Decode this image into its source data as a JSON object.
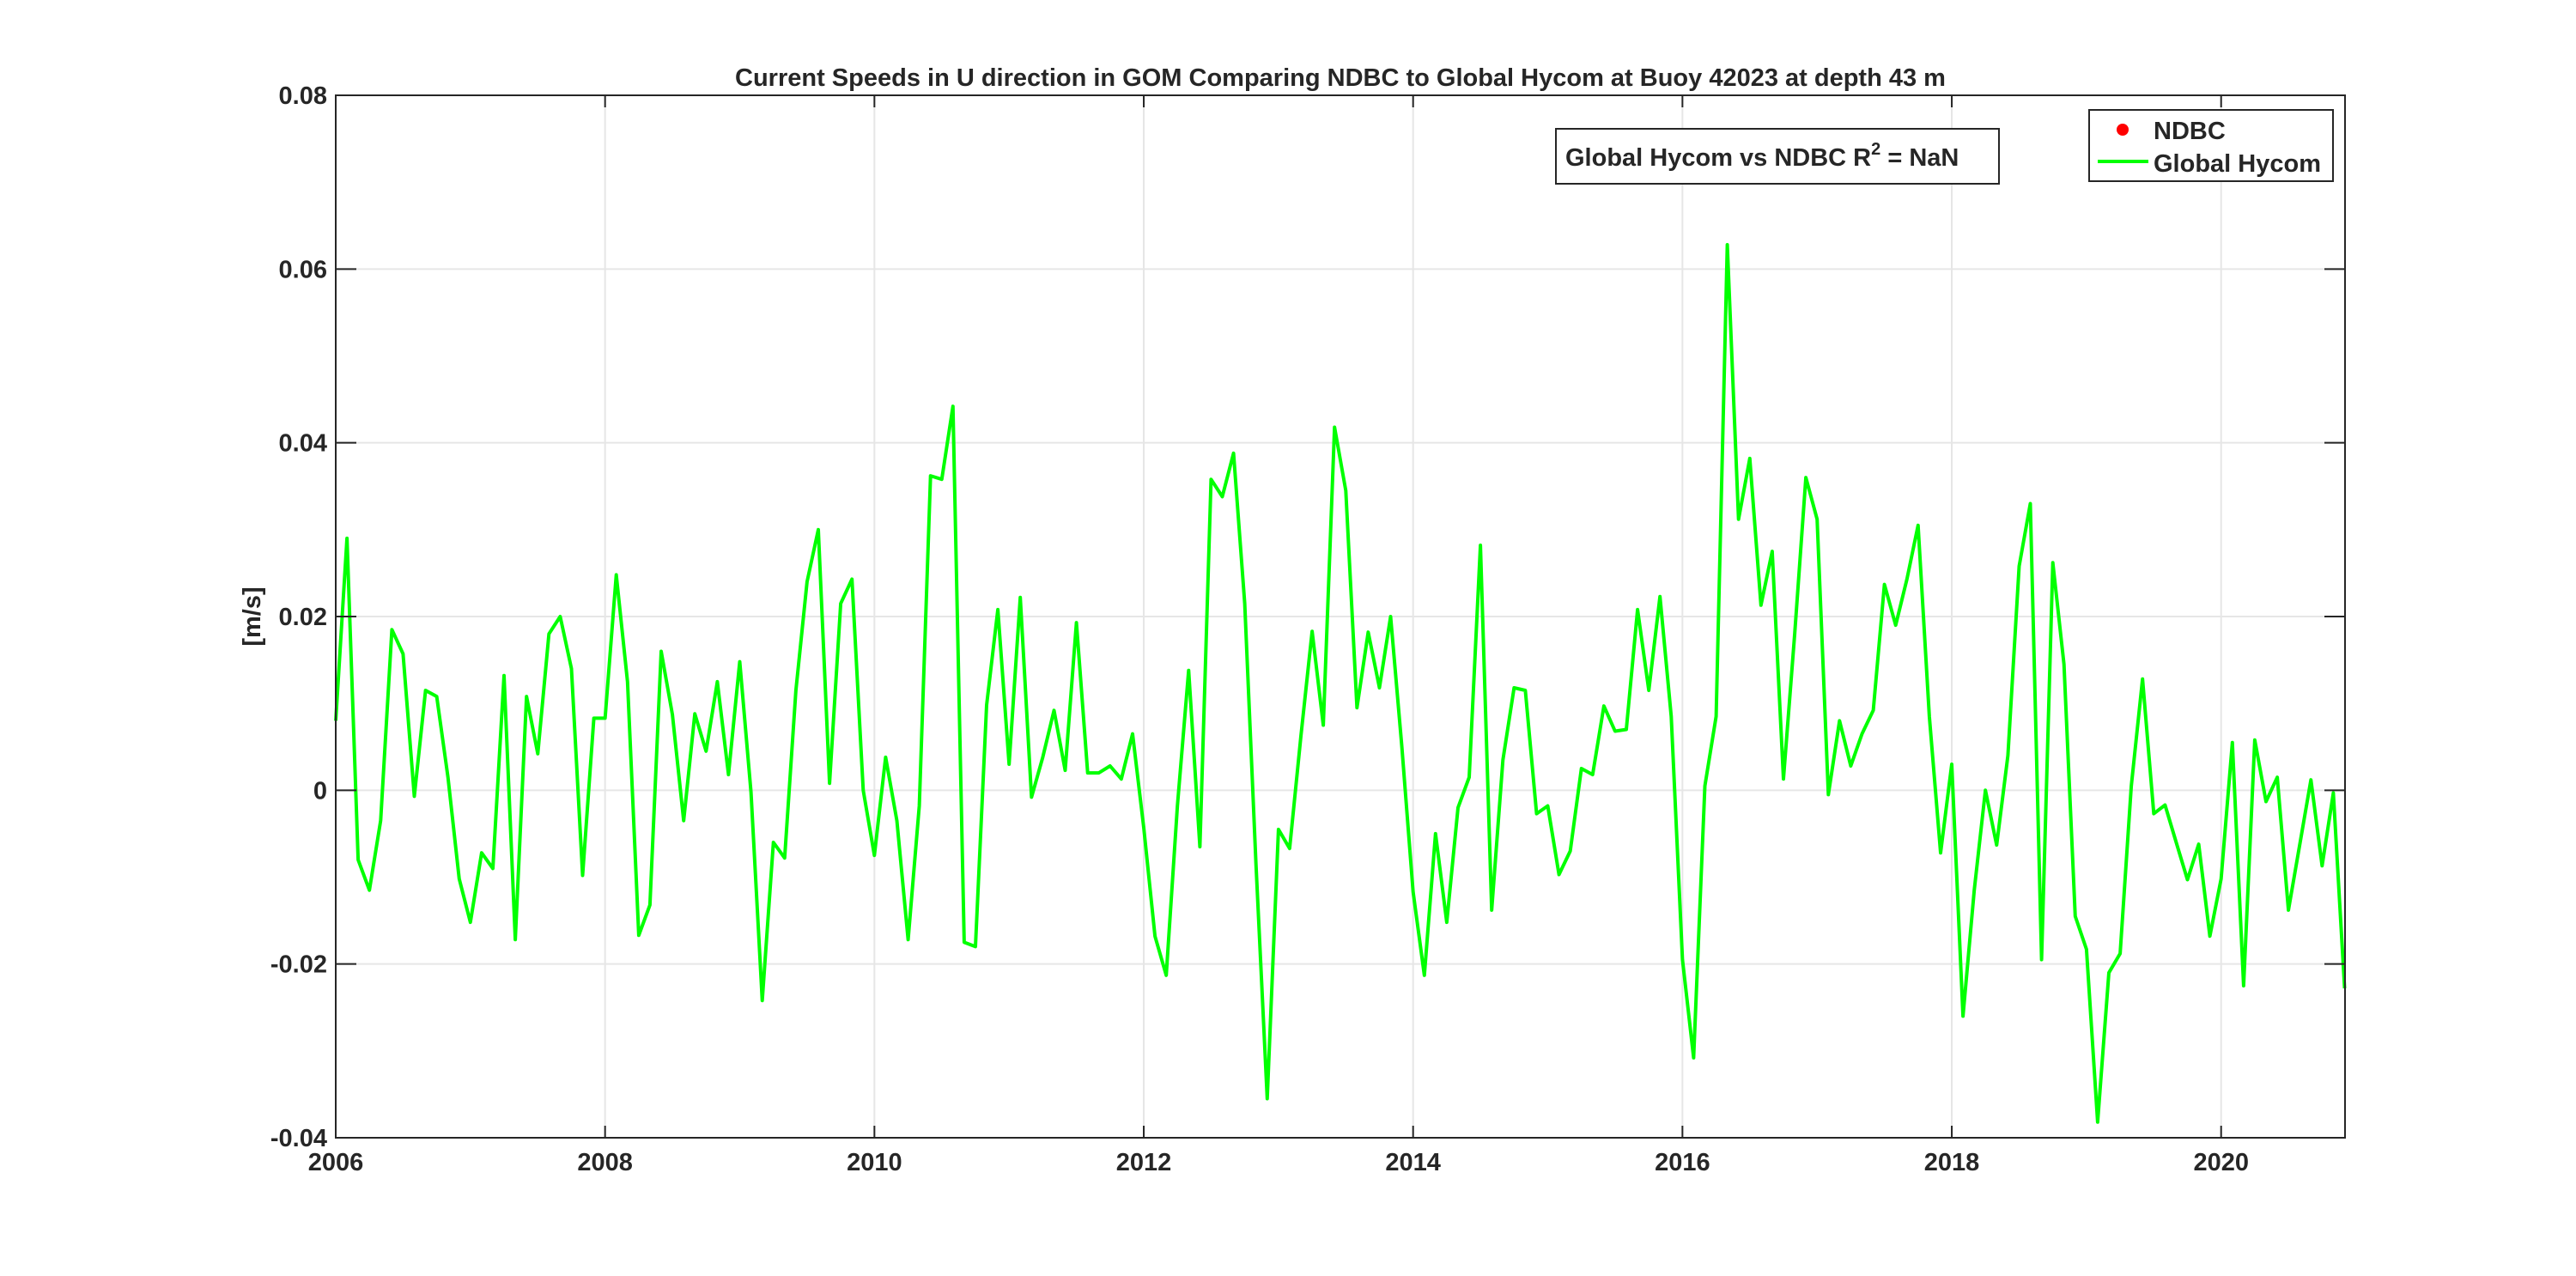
{
  "chart_data": {
    "type": "line",
    "title": "Current Speeds in U direction in GOM Comparing NDBC to Global Hycom at Buoy  42023  at depth  43 m",
    "xlabel": "",
    "ylabel": "[m/s]",
    "xlim": [
      2006,
      2020.92
    ],
    "ylim": [
      -0.04,
      0.08
    ],
    "x_ticks": [
      "2006",
      "2008",
      "2010",
      "2012",
      "2014",
      "2016",
      "2018",
      "2020"
    ],
    "y_ticks": [
      "-0.04",
      "-0.02",
      "0",
      "0.02",
      "0.04",
      "0.06",
      "0.08"
    ],
    "grid": true,
    "legend_position": "top-right",
    "annotation": {
      "prefix": "Global Hycom vs NDBC R",
      "sup": "2",
      "suffix": " = NaN"
    },
    "legend": [
      {
        "name": "NDBC",
        "marker": "dot",
        "color": "#ff0000"
      },
      {
        "name": "Global Hycom",
        "marker": "line",
        "color": "#00ff00"
      }
    ],
    "series": [
      {
        "name": "NDBC",
        "color": "#ff0000",
        "x": [],
        "y": []
      },
      {
        "name": "Global Hycom",
        "color": "#00ff00",
        "x": [
          2006.0,
          2006.0833,
          2006.1667,
          2006.25,
          2006.3333,
          2006.4167,
          2006.5,
          2006.5833,
          2006.6667,
          2006.75,
          2006.8333,
          2006.9167,
          2007.0,
          2007.0833,
          2007.1667,
          2007.25,
          2007.3333,
          2007.4167,
          2007.5,
          2007.5833,
          2007.6667,
          2007.75,
          2007.8333,
          2007.9167,
          2008.0,
          2008.0833,
          2008.1667,
          2008.25,
          2008.3333,
          2008.4167,
          2008.5,
          2008.5833,
          2008.6667,
          2008.75,
          2008.8333,
          2008.9167,
          2009.0,
          2009.0833,
          2009.1667,
          2009.25,
          2009.3333,
          2009.4167,
          2009.5,
          2009.5833,
          2009.6667,
          2009.75,
          2009.8333,
          2009.9167,
          2010.0,
          2010.0833,
          2010.1667,
          2010.25,
          2010.3333,
          2010.4167,
          2010.5,
          2010.5833,
          2010.6667,
          2010.75,
          2010.8333,
          2010.9167,
          2011.0,
          2011.0833,
          2011.1667,
          2011.25,
          2011.3333,
          2011.4167,
          2011.5,
          2011.5833,
          2011.6667,
          2011.75,
          2011.8333,
          2011.9167,
          2012.0,
          2012.0833,
          2012.1667,
          2012.25,
          2012.3333,
          2012.4167,
          2012.5,
          2012.5833,
          2012.6667,
          2012.75,
          2012.8333,
          2012.9167,
          2013.0,
          2013.0833,
          2013.1667,
          2013.25,
          2013.3333,
          2013.4167,
          2013.5,
          2013.5833,
          2013.6667,
          2013.75,
          2013.8333,
          2013.9167,
          2014.0,
          2014.0833,
          2014.1667,
          2014.25,
          2014.3333,
          2014.4167,
          2014.5,
          2014.5833,
          2014.6667,
          2014.75,
          2014.8333,
          2014.9167,
          2015.0,
          2015.0833,
          2015.1667,
          2015.25,
          2015.3333,
          2015.4167,
          2015.5,
          2015.5833,
          2015.6667,
          2015.75,
          2015.8333,
          2015.9167,
          2016.0,
          2016.0833,
          2016.1667,
          2016.25,
          2016.3333,
          2016.4167,
          2016.5,
          2016.5833,
          2016.6667,
          2016.75,
          2016.8333,
          2016.9167,
          2017.0,
          2017.0833,
          2017.1667,
          2017.25,
          2017.3333,
          2017.4167,
          2017.5,
          2017.5833,
          2017.6667,
          2017.75,
          2017.8333,
          2017.9167,
          2018.0,
          2018.0833,
          2018.1667,
          2018.25,
          2018.3333,
          2018.4167,
          2018.5,
          2018.5833,
          2018.6667,
          2018.75,
          2018.8333,
          2018.9167,
          2019.0,
          2019.0833,
          2019.1667,
          2019.25,
          2019.3333,
          2019.4167,
          2019.5,
          2019.5833,
          2019.6667,
          2019.75,
          2019.8333,
          2019.9167,
          2020.0,
          2020.0833,
          2020.1667,
          2020.25,
          2020.3333,
          2020.4167,
          2020.5,
          2020.5833,
          2020.6667,
          2020.75,
          2020.8333,
          2020.9167
        ],
        "y": [
          0.008,
          0.029,
          -0.008,
          -0.0115,
          -0.0035,
          0.0185,
          0.0157,
          -0.0007,
          0.0115,
          0.0108,
          0.0015,
          -0.0102,
          -0.0152,
          -0.0072,
          -0.009,
          0.0132,
          -0.0172,
          0.0108,
          0.0042,
          0.018,
          0.02,
          0.014,
          -0.0098,
          0.0083,
          0.0083,
          0.0248,
          0.0125,
          -0.0167,
          -0.0132,
          0.016,
          0.0087,
          -0.0035,
          0.0088,
          0.0045,
          0.0125,
          0.0018,
          0.0148,
          -0.0002,
          -0.0242,
          -0.006,
          -0.0078,
          0.0115,
          0.024,
          0.03,
          0.0008,
          0.0215,
          0.0243,
          0.0,
          -0.0075,
          0.0038,
          -0.0035,
          -0.0172,
          -0.0018,
          0.0362,
          0.0358,
          0.0442,
          -0.0175,
          -0.018,
          0.0098,
          0.0208,
          0.003,
          0.0222,
          -0.0008,
          0.0038,
          0.0092,
          0.0023,
          0.0193,
          0.002,
          0.002,
          0.0028,
          0.0013,
          0.0065,
          -0.0043,
          -0.0168,
          -0.0213,
          -0.0018,
          0.0138,
          -0.0065,
          0.0358,
          0.0338,
          0.0388,
          0.0215,
          -0.0085,
          -0.0355,
          -0.0045,
          -0.0067,
          0.0062,
          0.0183,
          0.0075,
          0.0418,
          0.0345,
          0.0095,
          0.0182,
          0.0118,
          0.02,
          0.005,
          -0.0117,
          -0.0213,
          -0.005,
          -0.0152,
          -0.002,
          0.0015,
          0.0282,
          -0.0138,
          0.0035,
          0.0118,
          0.0115,
          -0.0027,
          -0.0018,
          -0.0097,
          -0.007,
          0.0025,
          0.0018,
          0.0097,
          0.0068,
          0.007,
          0.0208,
          0.0115,
          0.0223,
          0.0085,
          -0.0195,
          -0.0308,
          0.0005,
          0.0085,
          0.0628,
          0.0312,
          0.0382,
          0.0213,
          0.0275,
          0.0013,
          0.018,
          0.036,
          0.0312,
          -0.0005,
          0.008,
          0.0028,
          0.0065,
          0.0092,
          0.0237,
          0.019,
          0.0243,
          0.0305,
          0.0085,
          -0.0072,
          0.003,
          -0.026,
          -0.0115,
          0.0,
          -0.0063,
          0.004,
          0.0258,
          0.033,
          -0.0195,
          0.0262,
          0.0145,
          -0.0145,
          -0.0183,
          -0.0382,
          -0.021,
          -0.0188,
          0.0005,
          0.0128,
          -0.0027,
          -0.0017,
          -0.006,
          -0.0103,
          -0.0062,
          -0.0168,
          -0.0102,
          0.0055,
          -0.0225,
          0.0058,
          -0.0013,
          0.0015,
          -0.0138,
          -0.0063,
          0.0012,
          -0.0087,
          -0.0003,
          -0.0228
        ]
      }
    ]
  }
}
